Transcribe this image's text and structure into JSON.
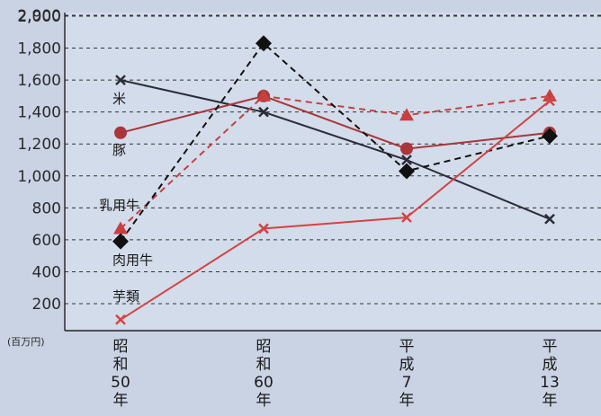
{
  "chart_data": {
    "type": "line",
    "title": "",
    "xlabel": "",
    "ylabel": "",
    "y_unit": "(百万円)",
    "ylim": [
      0,
      2900
    ],
    "yticks": [
      200,
      400,
      600,
      800,
      1000,
      1200,
      1400,
      1600,
      1800,
      2000,
      2900
    ],
    "ytick_labels": [
      "200",
      "400",
      "600",
      "800",
      "1,000",
      "1,200",
      "1,400",
      "1,600",
      "1,800",
      "2,000",
      "2,900"
    ],
    "grid": true,
    "categories": [
      [
        "昭",
        "和",
        "50",
        "年"
      ],
      [
        "昭",
        "和",
        "60",
        "年"
      ],
      [
        "平",
        "成",
        "7",
        "年"
      ],
      [
        "平",
        "成",
        "13",
        "年"
      ]
    ],
    "series": [
      {
        "name": "米",
        "values": [
          1600,
          1400,
          1100,
          730
        ],
        "color": "#2b2b3a",
        "dash": false,
        "marker": "x"
      },
      {
        "name": "豚",
        "values": [
          1270,
          1500,
          1170,
          1270
        ],
        "color": "#a8363b",
        "dash": false,
        "marker": "circle"
      },
      {
        "name": "乳用牛",
        "values": [
          670,
          1500,
          1380,
          1500
        ],
        "color": "#c64040",
        "dash": true,
        "marker": "triangle"
      },
      {
        "name": "肉用牛",
        "values": [
          590,
          1830,
          1030,
          1250
        ],
        "color": "#111111",
        "dash": true,
        "marker": "diamond"
      },
      {
        "name": "芋類",
        "values": [
          100,
          670,
          740,
          1470
        ],
        "color": "#d34444",
        "dash": false,
        "marker": "x"
      }
    ]
  }
}
